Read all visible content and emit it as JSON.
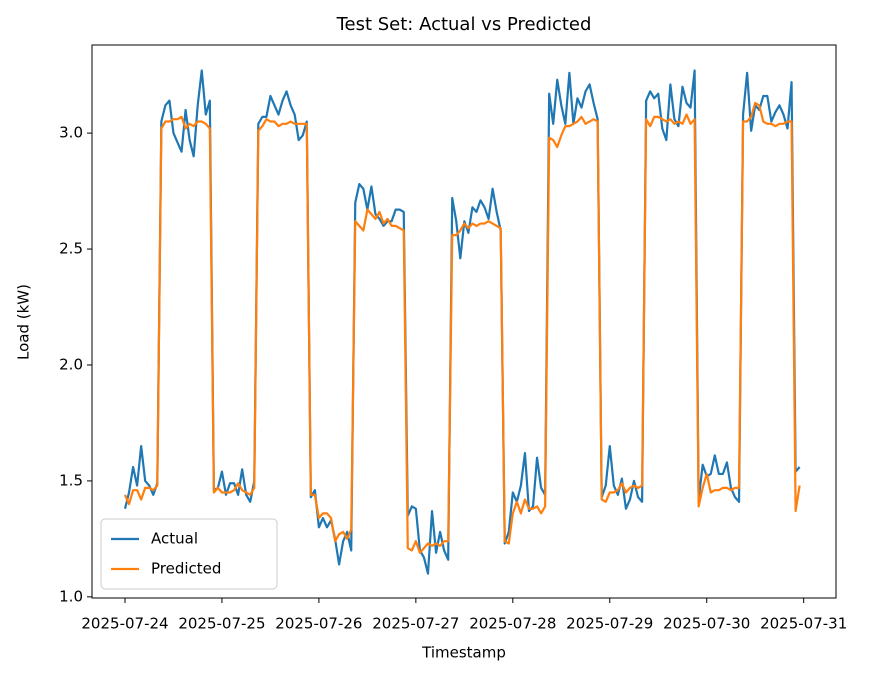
{
  "chart_data": {
    "type": "line",
    "title": "Test Set: Actual vs Predicted",
    "x_label": "Timestamp",
    "y_label": "Load (kW)",
    "x": [
      "2025-07-24 00:00",
      "2025-07-24 01:00",
      "2025-07-24 02:00",
      "2025-07-24 03:00",
      "2025-07-24 04:00",
      "2025-07-24 05:00",
      "2025-07-24 06:00",
      "2025-07-24 07:00",
      "2025-07-24 08:00",
      "2025-07-24 09:00",
      "2025-07-24 10:00",
      "2025-07-24 11:00",
      "2025-07-24 12:00",
      "2025-07-24 13:00",
      "2025-07-24 14:00",
      "2025-07-24 15:00",
      "2025-07-24 16:00",
      "2025-07-24 17:00",
      "2025-07-24 18:00",
      "2025-07-24 19:00",
      "2025-07-24 20:00",
      "2025-07-24 21:00",
      "2025-07-24 22:00",
      "2025-07-24 23:00",
      "2025-07-25 00:00",
      "2025-07-25 01:00",
      "2025-07-25 02:00",
      "2025-07-25 03:00",
      "2025-07-25 04:00",
      "2025-07-25 05:00",
      "2025-07-25 06:00",
      "2025-07-25 07:00",
      "2025-07-25 08:00",
      "2025-07-25 09:00",
      "2025-07-25 10:00",
      "2025-07-25 11:00",
      "2025-07-25 12:00",
      "2025-07-25 13:00",
      "2025-07-25 14:00",
      "2025-07-25 15:00",
      "2025-07-25 16:00",
      "2025-07-25 17:00",
      "2025-07-25 18:00",
      "2025-07-25 19:00",
      "2025-07-25 20:00",
      "2025-07-25 21:00",
      "2025-07-25 22:00",
      "2025-07-25 23:00",
      "2025-07-26 00:00",
      "2025-07-26 01:00",
      "2025-07-26 02:00",
      "2025-07-26 03:00",
      "2025-07-26 04:00",
      "2025-07-26 05:00",
      "2025-07-26 06:00",
      "2025-07-26 07:00",
      "2025-07-26 08:00",
      "2025-07-26 09:00",
      "2025-07-26 10:00",
      "2025-07-26 11:00",
      "2025-07-26 12:00",
      "2025-07-26 13:00",
      "2025-07-26 14:00",
      "2025-07-26 15:00",
      "2025-07-26 16:00",
      "2025-07-26 17:00",
      "2025-07-26 18:00",
      "2025-07-26 19:00",
      "2025-07-26 20:00",
      "2025-07-26 21:00",
      "2025-07-26 22:00",
      "2025-07-26 23:00",
      "2025-07-27 00:00",
      "2025-07-27 01:00",
      "2025-07-27 02:00",
      "2025-07-27 03:00",
      "2025-07-27 04:00",
      "2025-07-27 05:00",
      "2025-07-27 06:00",
      "2025-07-27 07:00",
      "2025-07-27 08:00",
      "2025-07-27 09:00",
      "2025-07-27 10:00",
      "2025-07-27 11:00",
      "2025-07-27 12:00",
      "2025-07-27 13:00",
      "2025-07-27 14:00",
      "2025-07-27 15:00",
      "2025-07-27 16:00",
      "2025-07-27 17:00",
      "2025-07-27 18:00",
      "2025-07-27 19:00",
      "2025-07-27 20:00",
      "2025-07-27 21:00",
      "2025-07-27 22:00",
      "2025-07-27 23:00",
      "2025-07-28 00:00",
      "2025-07-28 01:00",
      "2025-07-28 02:00",
      "2025-07-28 03:00",
      "2025-07-28 04:00",
      "2025-07-28 05:00",
      "2025-07-28 06:00",
      "2025-07-28 07:00",
      "2025-07-28 08:00",
      "2025-07-28 09:00",
      "2025-07-28 10:00",
      "2025-07-28 11:00",
      "2025-07-28 12:00",
      "2025-07-28 13:00",
      "2025-07-28 14:00",
      "2025-07-28 15:00",
      "2025-07-28 16:00",
      "2025-07-28 17:00",
      "2025-07-28 18:00",
      "2025-07-28 19:00",
      "2025-07-28 20:00",
      "2025-07-28 21:00",
      "2025-07-28 22:00",
      "2025-07-28 23:00",
      "2025-07-29 00:00",
      "2025-07-29 01:00",
      "2025-07-29 02:00",
      "2025-07-29 03:00",
      "2025-07-29 04:00",
      "2025-07-29 05:00",
      "2025-07-29 06:00",
      "2025-07-29 07:00",
      "2025-07-29 08:00",
      "2025-07-29 09:00",
      "2025-07-29 10:00",
      "2025-07-29 11:00",
      "2025-07-29 12:00",
      "2025-07-29 13:00",
      "2025-07-29 14:00",
      "2025-07-29 15:00",
      "2025-07-29 16:00",
      "2025-07-29 17:00",
      "2025-07-29 18:00",
      "2025-07-29 19:00",
      "2025-07-29 20:00",
      "2025-07-29 21:00",
      "2025-07-29 22:00",
      "2025-07-29 23:00",
      "2025-07-30 00:00",
      "2025-07-30 01:00",
      "2025-07-30 02:00",
      "2025-07-30 03:00",
      "2025-07-30 04:00",
      "2025-07-30 05:00",
      "2025-07-30 06:00",
      "2025-07-30 07:00",
      "2025-07-30 08:00",
      "2025-07-30 09:00",
      "2025-07-30 10:00",
      "2025-07-30 11:00",
      "2025-07-30 12:00",
      "2025-07-30 13:00",
      "2025-07-30 14:00",
      "2025-07-30 15:00",
      "2025-07-30 16:00",
      "2025-07-30 17:00",
      "2025-07-30 18:00",
      "2025-07-30 19:00",
      "2025-07-30 20:00",
      "2025-07-30 21:00",
      "2025-07-30 22:00",
      "2025-07-30 23:00"
    ],
    "series": [
      {
        "name": "Actual",
        "color": "#1f77b4",
        "values": [
          1.38,
          1.45,
          1.56,
          1.48,
          1.65,
          1.5,
          1.48,
          1.44,
          1.49,
          3.05,
          3.12,
          3.14,
          3.0,
          2.96,
          2.92,
          3.1,
          2.97,
          2.9,
          3.12,
          3.27,
          3.08,
          3.14,
          1.46,
          1.47,
          1.54,
          1.44,
          1.49,
          1.49,
          1.44,
          1.55,
          1.44,
          1.41,
          1.5,
          3.04,
          3.07,
          3.07,
          3.16,
          3.12,
          3.08,
          3.14,
          3.18,
          3.12,
          3.08,
          2.97,
          2.99,
          3.05,
          1.43,
          1.46,
          1.3,
          1.34,
          1.3,
          1.33,
          1.25,
          1.14,
          1.24,
          1.28,
          1.2,
          2.7,
          2.78,
          2.76,
          2.67,
          2.77,
          2.65,
          2.63,
          2.6,
          2.62,
          2.62,
          2.67,
          2.67,
          2.66,
          1.35,
          1.39,
          1.38,
          1.2,
          1.17,
          1.1,
          1.37,
          1.19,
          1.28,
          1.2,
          1.16,
          2.72,
          2.62,
          2.46,
          2.62,
          2.57,
          2.68,
          2.66,
          2.71,
          2.68,
          2.63,
          2.76,
          2.66,
          2.58,
          1.23,
          1.28,
          1.45,
          1.41,
          1.48,
          1.62,
          1.37,
          1.39,
          1.6,
          1.47,
          1.44,
          3.17,
          3.04,
          3.23,
          3.12,
          3.04,
          3.26,
          3.04,
          3.15,
          3.11,
          3.18,
          3.21,
          3.13,
          3.06,
          1.43,
          1.48,
          1.65,
          1.48,
          1.44,
          1.51,
          1.38,
          1.42,
          1.5,
          1.43,
          1.41,
          3.14,
          3.18,
          3.15,
          3.17,
          3.02,
          2.97,
          3.21,
          3.06,
          3.03,
          3.2,
          3.13,
          3.11,
          3.27,
          1.42,
          1.57,
          1.52,
          1.53,
          1.61,
          1.53,
          1.53,
          1.58,
          1.47,
          1.43,
          1.41,
          3.08,
          3.26,
          3.01,
          3.12,
          3.1,
          3.16,
          3.16,
          3.05,
          3.09,
          3.12,
          3.08,
          3.02,
          3.22,
          1.54,
          1.56
        ]
      },
      {
        "name": "Predicted",
        "color": "#ff7f0e",
        "values": [
          1.44,
          1.4,
          1.46,
          1.46,
          1.42,
          1.47,
          1.47,
          1.46,
          1.48,
          3.02,
          3.05,
          3.05,
          3.06,
          3.06,
          3.07,
          3.02,
          3.04,
          3.03,
          3.05,
          3.05,
          3.04,
          3.02,
          1.45,
          1.47,
          1.45,
          1.45,
          1.45,
          1.46,
          1.49,
          1.46,
          1.45,
          1.44,
          1.47,
          3.01,
          3.03,
          3.06,
          3.05,
          3.05,
          3.03,
          3.04,
          3.04,
          3.05,
          3.04,
          3.04,
          3.04,
          3.04,
          1.44,
          1.44,
          1.34,
          1.36,
          1.36,
          1.34,
          1.24,
          1.27,
          1.28,
          1.25,
          1.29,
          2.62,
          2.6,
          2.58,
          2.67,
          2.65,
          2.63,
          2.66,
          2.61,
          2.63,
          2.6,
          2.6,
          2.59,
          2.58,
          1.21,
          1.2,
          1.24,
          1.19,
          1.21,
          1.23,
          1.22,
          1.23,
          1.22,
          1.24,
          1.24,
          2.56,
          2.56,
          2.58,
          2.61,
          2.59,
          2.61,
          2.6,
          2.61,
          2.61,
          2.62,
          2.61,
          2.6,
          2.59,
          1.24,
          1.23,
          1.36,
          1.41,
          1.36,
          1.42,
          1.38,
          1.38,
          1.39,
          1.36,
          1.39,
          2.98,
          2.97,
          2.94,
          2.99,
          3.03,
          3.03,
          3.04,
          3.05,
          3.07,
          3.04,
          3.05,
          3.06,
          3.05,
          1.42,
          1.41,
          1.45,
          1.45,
          1.46,
          1.49,
          1.45,
          1.47,
          1.48,
          1.47,
          1.48,
          3.06,
          3.03,
          3.07,
          3.07,
          3.06,
          3.05,
          3.06,
          3.04,
          3.05,
          3.04,
          3.08,
          3.04,
          3.06,
          1.39,
          1.47,
          1.53,
          1.45,
          1.46,
          1.46,
          1.47,
          1.47,
          1.46,
          1.47,
          1.47,
          3.05,
          3.05,
          3.07,
          3.13,
          3.12,
          3.05,
          3.04,
          3.04,
          3.03,
          3.04,
          3.04,
          3.05,
          3.05,
          1.37,
          1.48
        ]
      }
    ],
    "xlim": [
      "2025-07-23 15:50",
      "2025-07-31 08:00"
    ],
    "xticks": [
      "2025-07-24",
      "2025-07-25",
      "2025-07-26",
      "2025-07-27",
      "2025-07-28",
      "2025-07-29",
      "2025-07-30",
      "2025-07-31"
    ],
    "ylim": [
      0.995,
      3.38
    ],
    "yticks": [
      {
        "value": 1,
        "label": "1.0"
      },
      1.5,
      {
        "value": 2,
        "label": "2.0"
      },
      2.5,
      {
        "value": 3,
        "label": "3.0"
      }
    ],
    "legend": "lower left"
  }
}
